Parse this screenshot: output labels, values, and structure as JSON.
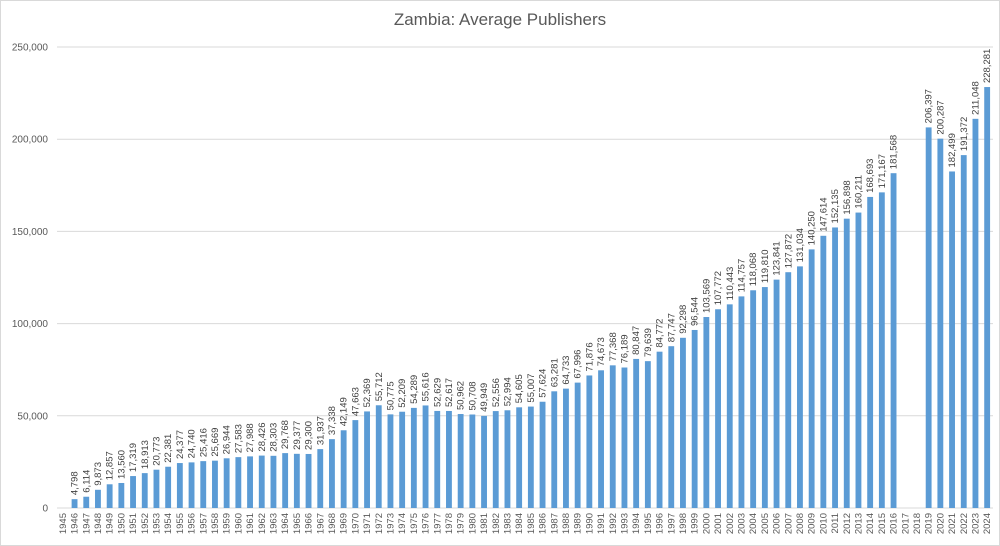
{
  "chart_data": {
    "type": "bar",
    "title": "Zambia: Average Publishers",
    "xlabel": "",
    "ylabel": "",
    "ylim": [
      0,
      250000
    ],
    "yticks": [
      0,
      50000,
      100000,
      150000,
      200000,
      250000
    ],
    "ytick_labels": [
      "0",
      "50,000",
      "100,000",
      "150,000",
      "200,000",
      "250,000"
    ],
    "grid": true,
    "legend": "none",
    "bar_color": "#5b9bd5",
    "categories": [
      "1945",
      "1946",
      "1947",
      "1948",
      "1949",
      "1950",
      "1951",
      "1952",
      "1953",
      "1954",
      "1955",
      "1956",
      "1957",
      "1958",
      "1959",
      "1960",
      "1961",
      "1962",
      "1963",
      "1964",
      "1965",
      "1966",
      "1967",
      "1968",
      "1969",
      "1970",
      "1971",
      "1972",
      "1973",
      "1974",
      "1975",
      "1976",
      "1977",
      "1978",
      "1979",
      "1980",
      "1981",
      "1982",
      "1983",
      "1984",
      "1985",
      "1986",
      "1987",
      "1988",
      "1989",
      "1990",
      "1991",
      "1992",
      "1993",
      "1994",
      "1995",
      "1996",
      "1997",
      "1998",
      "1999",
      "2000",
      "2001",
      "2002",
      "2003",
      "2004",
      "2005",
      "2006",
      "2007",
      "2008",
      "2009",
      "2010",
      "2011",
      "2012",
      "2013",
      "2014",
      "2015",
      "2016",
      "2017",
      "2018",
      "2019",
      "2020",
      "2021",
      "2022",
      "2023",
      "2024"
    ],
    "values": [
      null,
      4798,
      6114,
      9873,
      12857,
      13560,
      17319,
      18913,
      20773,
      22381,
      24377,
      24740,
      25416,
      25669,
      26944,
      27583,
      27988,
      28426,
      28303,
      29768,
      29377,
      29300,
      31937,
      37338,
      42149,
      47663,
      52369,
      55712,
      50775,
      52209,
      54289,
      55616,
      52629,
      52617,
      50962,
      50708,
      49949,
      52556,
      52994,
      54605,
      55007,
      57624,
      63281,
      64733,
      67996,
      71876,
      74673,
      77368,
      76189,
      80847,
      79639,
      84772,
      87747,
      92298,
      96544,
      103569,
      107772,
      110443,
      114757,
      118068,
      119810,
      123841,
      127872,
      131034,
      140250,
      147614,
      152135,
      156898,
      160211,
      168693,
      171167,
      181568,
      null,
      null,
      206397,
      200287,
      182499,
      191372,
      211048,
      228281
    ],
    "data_labels": [
      "",
      "4,798",
      "6,114",
      "9,873",
      "12,857",
      "13,560",
      "17,319",
      "18,913",
      "20,773",
      "22,381",
      "24,377",
      "24,740",
      "25,416",
      "25,669",
      "26,944",
      "27,583",
      "27,988",
      "28,426",
      "28,303",
      "29,768",
      "29,377",
      "29,300",
      "31,937",
      "37,338",
      "42,149",
      "47,663",
      "52,369",
      "55,712",
      "50,775",
      "52,209",
      "54,289",
      "55,616",
      "52,629",
      "52,617",
      "50,962",
      "50,708",
      "49,949",
      "52,556",
      "52,994",
      "54,605",
      "55,007",
      "57,624",
      "63,281",
      "64,733",
      "67,996",
      "71,876",
      "74,673",
      "77,368",
      "76,189",
      "80,847",
      "79,639",
      "84,772",
      "87,747",
      "92,298",
      "96,544",
      "103,569",
      "107,772",
      "110,443",
      "114,757",
      "118,068",
      "119,810",
      "123,841",
      "127,872",
      "131,034",
      "140,250",
      "147,614",
      "152,135",
      "156,898",
      "160,211",
      "168,693",
      "171,167",
      "181,568",
      "",
      "",
      "206,397",
      "200,287",
      "182,499",
      "191,372",
      "211,048",
      "228,281"
    ]
  }
}
